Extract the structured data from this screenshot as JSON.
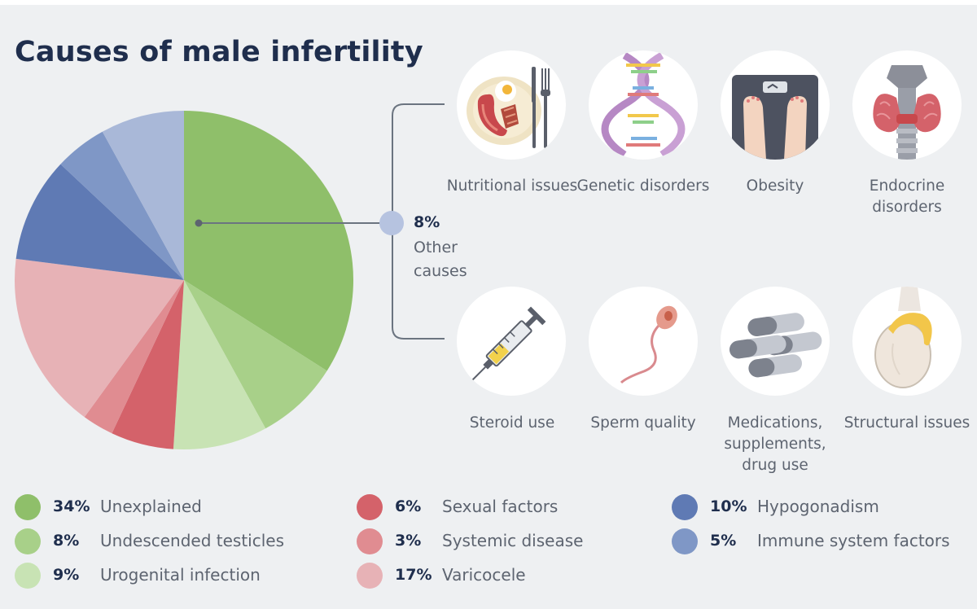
{
  "title": "Causes of male infertility",
  "chart_data": {
    "type": "pie",
    "title": "Causes of male infertility",
    "unit": "%",
    "slices": [
      {
        "label": "Unexplained",
        "value": 34,
        "color": "#8fbf6a"
      },
      {
        "label": "Undescended testicles",
        "value": 8,
        "color": "#a8d089"
      },
      {
        "label": "Urogenital infection",
        "value": 9,
        "color": "#c8e3b4"
      },
      {
        "label": "Sexual factors",
        "value": 6,
        "color": "#d4626a"
      },
      {
        "label": "Systemic disease",
        "value": 3,
        "color": "#e08c91"
      },
      {
        "label": "Varicocele",
        "value": 17,
        "color": "#e7b2b6"
      },
      {
        "label": "Hypogonadism",
        "value": 10,
        "color": "#5f7ab4"
      },
      {
        "label": "Immune system factors",
        "value": 5,
        "color": "#7f97c6"
      },
      {
        "label": "Other causes",
        "value": 8,
        "color": "#a9b8d8"
      }
    ]
  },
  "callout": {
    "percent": "8%",
    "label": "Other causes",
    "items": [
      {
        "caption": "Nutritional issues",
        "icon": "food-plate-icon"
      },
      {
        "caption": "Genetic disorders",
        "icon": "dna-icon"
      },
      {
        "caption": "Obesity",
        "icon": "scale-icon"
      },
      {
        "caption": "Endocrine disorders",
        "icon": "thyroid-icon"
      },
      {
        "caption": "Steroid use",
        "icon": "syringe-icon"
      },
      {
        "caption": "Sperm quality",
        "icon": "sperm-icon"
      },
      {
        "caption": "Medications, supplements, drug use",
        "icon": "pills-icon"
      },
      {
        "caption": "Structural issues",
        "icon": "testicle-icon"
      }
    ]
  },
  "legend": [
    {
      "percent": "34%",
      "label": "Unexplained",
      "color": "#8fbf6a"
    },
    {
      "percent": "8%",
      "label": "Undescended testicles",
      "color": "#a8d089"
    },
    {
      "percent": "9%",
      "label": "Urogenital infection",
      "color": "#c8e3b4"
    },
    {
      "percent": "6%",
      "label": "Sexual factors",
      "color": "#d4626a"
    },
    {
      "percent": "3%",
      "label": "Systemic disease",
      "color": "#e08c91"
    },
    {
      "percent": "17%",
      "label": "Varicocele",
      "color": "#e7b2b6"
    },
    {
      "percent": "10%",
      "label": "Hypogonadism",
      "color": "#5f7ab4"
    },
    {
      "percent": "5%",
      "label": "Immune system factors",
      "color": "#7f97c6"
    }
  ]
}
